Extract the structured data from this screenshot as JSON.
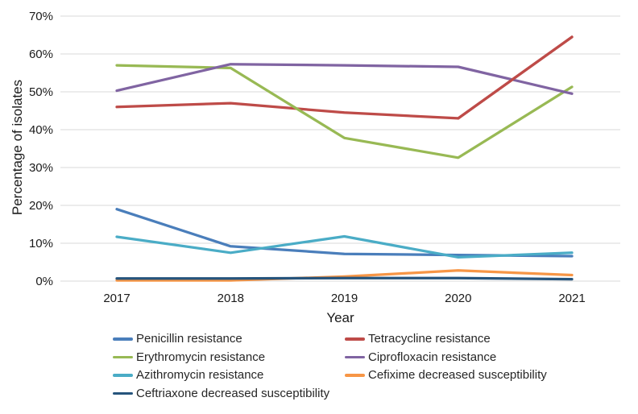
{
  "chart_data": {
    "type": "line",
    "title": "",
    "xlabel": "Year",
    "ylabel": "Percentage of isolates",
    "x": [
      "2017",
      "2018",
      "2019",
      "2020",
      "2021"
    ],
    "ylim": [
      0,
      70
    ],
    "yticks": [
      0,
      10,
      20,
      30,
      40,
      50,
      60,
      70
    ],
    "ytick_suffix": "%",
    "grid": true,
    "legend_position": "bottom",
    "gridline_color": "#d9d9d9",
    "text_color": "#1a1a1a",
    "series": [
      {
        "name": "Penicillin resistance",
        "color": "#4a7ebb",
        "values": [
          19,
          9.2,
          7.2,
          6.9,
          6.6
        ]
      },
      {
        "name": "Tetracycline resistance",
        "color": "#be4b48",
        "values": [
          46,
          47,
          44.5,
          43,
          64.5
        ]
      },
      {
        "name": "Erythromycin resistance",
        "color": "#98b954",
        "values": [
          57,
          56.3,
          37.8,
          32.6,
          51.3
        ]
      },
      {
        "name": "Ciprofloxacin resistance",
        "color": "#8064a2",
        "values": [
          50.3,
          57.3,
          57,
          56.6,
          49.5
        ]
      },
      {
        "name": "Azithromycin resistance",
        "color": "#4aacc6",
        "values": [
          11.7,
          7.5,
          11.8,
          6.3,
          7.5
        ]
      },
      {
        "name": "Cefixime decreased susceptibility",
        "color": "#f79646",
        "values": [
          0.2,
          0.2,
          1.2,
          2.8,
          1.6
        ]
      },
      {
        "name": "Ceftriaxone decreased susceptibility",
        "color": "#26547c",
        "values": [
          0.7,
          0.7,
          0.8,
          0.8,
          0.5
        ]
      }
    ]
  }
}
